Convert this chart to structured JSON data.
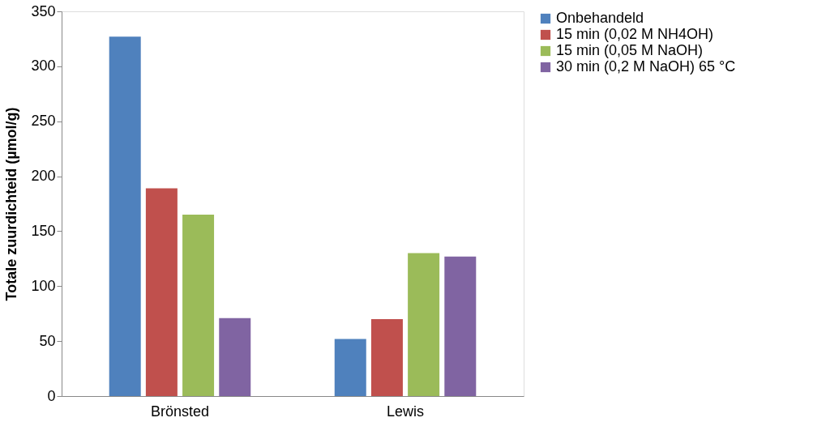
{
  "chart_data": {
    "type": "bar",
    "ylabel": "Totale zuurdichteid (µmol/g)",
    "categories": [
      "Brönsted",
      "Lewis"
    ],
    "series": [
      {
        "name": "Onbehandeld",
        "color": "#4f81bd",
        "values": [
          327,
          52
        ]
      },
      {
        "name": "15 min (0,02 M NH4OH)",
        "color": "#c0504d",
        "values": [
          189,
          70
        ]
      },
      {
        "name": "15 min (0,05 M NaOH)",
        "color": "#9bbb59",
        "values": [
          165,
          130
        ]
      },
      {
        "name": "30 min (0,2 M NaOH) 65 °C",
        "color": "#8064a2",
        "values": [
          71,
          127
        ]
      }
    ],
    "ylim": [
      0,
      350
    ],
    "yticks": [
      0,
      50,
      100,
      150,
      200,
      250,
      300,
      350
    ],
    "grid": false,
    "legend": "right"
  }
}
